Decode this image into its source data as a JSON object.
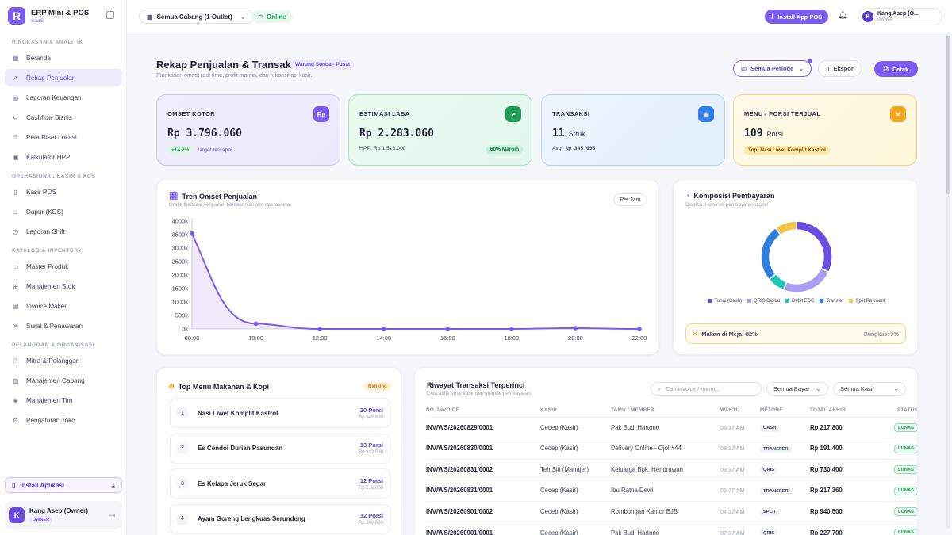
{
  "app": {
    "name": "ERP Mini & POS",
    "sub": "SaaS",
    "logo_letter": "R",
    "accent": "#7c5cf0"
  },
  "sidebar": {
    "sections": [
      {
        "title": "RINGKASAN & ANALITIK",
        "items": [
          {
            "label": "Beranda",
            "icon": "grid-icon"
          },
          {
            "label": "Rekap Penjualan",
            "icon": "trend-icon",
            "active": true
          },
          {
            "label": "Laporan Keuangan",
            "icon": "document-icon"
          },
          {
            "label": "Cashflow Bisnis",
            "icon": "swap-icon"
          },
          {
            "label": "Peta Riset Lokasi",
            "icon": "pin-icon"
          },
          {
            "label": "Kalkulator HPP",
            "icon": "calculator-icon"
          }
        ]
      },
      {
        "title": "OPERASIONAL KASIR & KDS",
        "items": [
          {
            "label": "Kasir POS",
            "icon": "receipt-icon"
          },
          {
            "label": "Dapur (KDS)",
            "icon": "chef-hat-icon"
          },
          {
            "label": "Laporan Shift",
            "icon": "clock-icon"
          }
        ]
      },
      {
        "title": "KATALOG & INVENTORY",
        "items": [
          {
            "label": "Master Produk",
            "icon": "box-icon"
          },
          {
            "label": "Manajemen Stok",
            "icon": "boxes-icon"
          },
          {
            "label": "Invoice Maker",
            "icon": "invoice-icon"
          },
          {
            "label": "Surat & Penawaran",
            "icon": "mail-icon"
          }
        ]
      },
      {
        "title": "PELANGGAN & ORGANISASI",
        "items": [
          {
            "label": "Mitra & Pelanggan",
            "icon": "users-icon"
          },
          {
            "label": "Manajemen Cabang",
            "icon": "building-icon"
          },
          {
            "label": "Manajemen Tim",
            "icon": "shield-icon"
          },
          {
            "label": "Pengaturan Toko",
            "icon": "gear-icon"
          }
        ]
      }
    ],
    "install_label": "Install Aplikasi",
    "user": {
      "initial": "K",
      "name": "Kang Asep (Owner)",
      "role": "OWNER"
    }
  },
  "topbar": {
    "branch": "Semua Cabang (1 Outlet)",
    "online": "Online",
    "install": "Install App POS",
    "user_name": "Kang Asep (O...",
    "user_role": "OWNER",
    "user_initial": "K"
  },
  "header": {
    "title": "Rekap Penjualan & Transaksi",
    "store": "Warung Sunda - Pusat",
    "subtitle": "Ringkasan omset real-time, profit margin, dan rekonsiliasi kasir.",
    "period": "Semua Periode",
    "export": "Ekspor",
    "print": "Cetak"
  },
  "kpis": {
    "omset": {
      "label": "OMSET KOTOR",
      "icon_text": "Rp",
      "value": "Rp 3.796.060",
      "delta": "+14.2%",
      "note": "target tercapai",
      "color": "#7c5cf0"
    },
    "laba": {
      "label": "ESTIMASI LABA",
      "value": "Rp 2.283.060",
      "note": "HPP: Rp 1.513.000",
      "margin": "60% Margin",
      "color": "#1f9d57"
    },
    "transaksi": {
      "label": "TRANSAKSI",
      "value": "11",
      "unit": "Struk",
      "note_label": "Avg:",
      "note_value": "Rp 345.096",
      "color": "#2f80ed"
    },
    "menu": {
      "label": "MENU / PORSI TERJUAL",
      "value": "109",
      "unit": "Porsi",
      "top": "Top: Nasi Liwet Komplit Kastrol",
      "color": "#f2a516"
    }
  },
  "trend": {
    "title": "Tren Omset Penjualan",
    "subtitle": "Grafik fluktuasi penjualan berdasarkan jam operasional",
    "toggle": "Per Jam"
  },
  "chart_data": [
    {
      "type": "area",
      "title": "Tren Omset Penjualan",
      "x": [
        "08:00",
        "10:00",
        "12:00",
        "14:00",
        "16:00",
        "18:00",
        "20:00",
        "22:00"
      ],
      "y": [
        3540000,
        195000,
        0,
        0,
        0,
        0,
        30000,
        0
      ],
      "yticks": [
        "0k",
        "500k",
        "1000k",
        "1500k",
        "2000k",
        "2500k",
        "3000k",
        "3500k",
        "4000k"
      ],
      "ylim": [
        0,
        4000000
      ],
      "color": "#7c5cf0",
      "grid": false
    },
    {
      "type": "pie",
      "title": "Komposisi Pembayaran",
      "subtitle": "Distribusi kasir vs pembayaran digital",
      "labels": [
        "Tunai (Cash)",
        "QRIS Digital",
        "Debit EDC",
        "Transfer",
        "Split Payment"
      ],
      "values": [
        32,
        24,
        8,
        26,
        10
      ],
      "colors": [
        "#6a4ce0",
        "#a99cf3",
        "#1ec9b7",
        "#2f7fe0",
        "#f7c44a"
      ]
    }
  ],
  "payment": {
    "dine_label": "Makan di Meja: 82%",
    "takeaway_label": "Bungkus: 9%"
  },
  "top_menu": {
    "title": "Top Menu Makanan & Kopi",
    "badge": "Ranking",
    "items": [
      {
        "rank": "1",
        "name": "Nasi Liwet Komplit Kastrol",
        "qty": "20 Porsi",
        "price": "Rp 945.000"
      },
      {
        "rank": "2",
        "name": "Es Cendol Durian Pasundan",
        "qty": "13 Porsi",
        "price": "Rp 312.000"
      },
      {
        "rank": "3",
        "name": "Es Kelapa Jeruk Segar",
        "qty": "12 Porsi",
        "price": "Rp 216.000"
      },
      {
        "rank": "4",
        "name": "Ayam Goreng Lengkuas Serundeng",
        "qty": "12 Porsi",
        "price": "Rp 360.000"
      }
    ]
  },
  "transactions": {
    "title": "Riwayat Transaksi Terperinci",
    "subtitle": "Data audit struk kasir dan metode pembayaran",
    "search_placeholder": "Cari invoice / menu...",
    "filter_pay": "Semua Bayar",
    "filter_cashier": "Semua Kasir",
    "columns": [
      "NO. INVOICE",
      "KASIR",
      "TAMU / MEMBER",
      "WAKTU",
      "METODE",
      "TOTAL AKHIR",
      "STATUS"
    ],
    "rows": [
      {
        "invoice": "INV/WS/20260829/0001",
        "cashier": "Cecep (Kasir)",
        "guest": "Pak Budi Hartono",
        "time": "05:37 AM",
        "method": "CASH",
        "total": "Rp 217.800",
        "status": "LUNAS"
      },
      {
        "invoice": "INV/WS/20260830/0001",
        "cashier": "Cecep (Kasir)",
        "guest": "Delivery Online - Ojol #44",
        "time": "08:37 AM",
        "method": "TRANSFER",
        "total": "Rp 191.400",
        "status": "LUNAS"
      },
      {
        "invoice": "INV/WS/20260831/0002",
        "cashier": "Teh Siti (Manajer)",
        "guest": "Keluarga Bpk. Hendrawan",
        "time": "03:37 AM",
        "method": "QRIS",
        "total": "Rp 730.400",
        "status": "LUNAS"
      },
      {
        "invoice": "INV/WS/20260831/0001",
        "cashier": "Cecep (Kasir)",
        "guest": "Ibu Ratna Dewi",
        "time": "06:37 AM",
        "method": "TRANSFER",
        "total": "Rp 217.360",
        "status": "LUNAS"
      },
      {
        "invoice": "INV/WS/20260901/0002",
        "cashier": "Cecep (Kasir)",
        "guest": "Rombongan Kantor BJB",
        "time": "04:37 AM",
        "method": "SPLIT",
        "total": "Rp 940.500",
        "status": "LUNAS"
      },
      {
        "invoice": "INV/WS/20260901/0001",
        "cashier": "Cecep (Kasir)",
        "guest": "Pak Budi Hartono",
        "time": "07:37 AM",
        "method": "QRIS",
        "total": "Rp 227.700",
        "status": "LUNAS"
      }
    ]
  }
}
